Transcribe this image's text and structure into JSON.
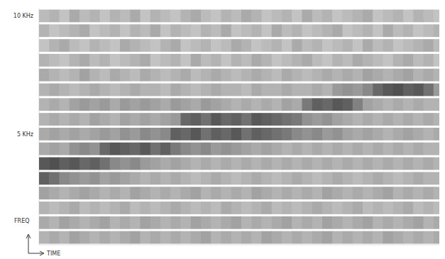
{
  "chart_data": {
    "type": "heatmap",
    "x_label": "TIME",
    "y_label": "FREQ",
    "tick_labels": "y",
    "x": [
      0,
      1,
      2,
      3,
      4,
      5,
      6,
      7,
      8,
      9,
      10,
      11,
      12,
      13,
      14,
      15,
      16,
      17,
      18,
      19,
      20,
      21,
      22,
      23,
      24,
      25,
      26,
      27,
      28,
      29,
      30,
      31,
      32,
      33,
      34,
      35,
      36,
      37,
      38,
      39
    ],
    "y": [
      10,
      9.375,
      8.75,
      8.125,
      7.5,
      6.875,
      6.25,
      5.625,
      5,
      4.375,
      3.75,
      3.125,
      2.5,
      1.875,
      1.25,
      0.625
    ],
    "xlim": [
      0,
      40
    ],
    "ylim": [
      0.3125,
      10.3125
    ],
    "yticks": [
      {
        "value": 10,
        "label": "10 KHz"
      },
      {
        "value": 5,
        "label": "5 KHz"
      }
    ],
    "cells": [
      [
        0.25,
        0.3,
        0.2,
        0.35,
        0.25,
        0.3,
        0.2,
        0.3,
        0.25,
        0.35,
        0.2,
        0.3,
        0.25,
        0.2,
        0.3,
        0.35,
        0.25,
        0.2,
        0.3,
        0.25,
        0.35,
        0.3,
        0.2,
        0.25,
        0.3,
        0.2,
        0.35,
        0.25,
        0.3,
        0.2,
        0.25,
        0.3,
        0.35,
        0.2,
        0.25,
        0.3,
        0.2,
        0.3,
        0.25,
        0.2
      ],
      [
        0.3,
        0.2,
        0.25,
        0.3,
        0.35,
        0.2,
        0.25,
        0.3,
        0.2,
        0.3,
        0.25,
        0.35,
        0.2,
        0.3,
        0.25,
        0.2,
        0.3,
        0.25,
        0.35,
        0.2,
        0.25,
        0.3,
        0.2,
        0.35,
        0.25,
        0.3,
        0.2,
        0.25,
        0.3,
        0.35,
        0.2,
        0.25,
        0.3,
        0.2,
        0.35,
        0.25,
        0.3,
        0.2,
        0.25,
        0.3
      ],
      [
        0.2,
        0.3,
        0.35,
        0.25,
        0.2,
        0.3,
        0.25,
        0.2,
        0.35,
        0.3,
        0.25,
        0.2,
        0.3,
        0.35,
        0.2,
        0.25,
        0.3,
        0.2,
        0.25,
        0.35,
        0.3,
        0.2,
        0.25,
        0.3,
        0.2,
        0.35,
        0.25,
        0.3,
        0.2,
        0.25,
        0.3,
        0.2,
        0.35,
        0.25,
        0.3,
        0.2,
        0.25,
        0.3,
        0.35,
        0.25
      ],
      [
        0.3,
        0.25,
        0.2,
        0.3,
        0.35,
        0.25,
        0.3,
        0.2,
        0.25,
        0.3,
        0.35,
        0.2,
        0.25,
        0.3,
        0.2,
        0.35,
        0.25,
        0.3,
        0.2,
        0.3,
        0.25,
        0.35,
        0.3,
        0.2,
        0.25,
        0.3,
        0.35,
        0.25,
        0.2,
        0.3,
        0.25,
        0.35,
        0.3,
        0.25,
        0.2,
        0.3,
        0.35,
        0.25,
        0.3,
        0.2
      ],
      [
        0.35,
        0.3,
        0.25,
        0.3,
        0.4,
        0.3,
        0.25,
        0.35,
        0.3,
        0.25,
        0.35,
        0.3,
        0.25,
        0.3,
        0.35,
        0.25,
        0.3,
        0.35,
        0.3,
        0.25,
        0.3,
        0.35,
        0.3,
        0.25,
        0.35,
        0.3,
        0.25,
        0.3,
        0.35,
        0.3,
        0.35,
        0.3,
        0.4,
        0.35,
        0.3,
        0.35,
        0.4,
        0.3,
        0.35,
        0.3
      ],
      [
        0.3,
        0.35,
        0.3,
        0.25,
        0.3,
        0.35,
        0.3,
        0.25,
        0.3,
        0.35,
        0.3,
        0.3,
        0.25,
        0.35,
        0.3,
        0.25,
        0.3,
        0.35,
        0.3,
        0.3,
        0.25,
        0.35,
        0.3,
        0.3,
        0.35,
        0.3,
        0.3,
        0.35,
        0.3,
        0.45,
        0.5,
        0.45,
        0.55,
        0.75,
        0.85,
        0.9,
        0.8,
        0.85,
        0.7,
        0.45
      ],
      [
        0.3,
        0.35,
        0.3,
        0.4,
        0.45,
        0.4,
        0.45,
        0.35,
        0.45,
        0.4,
        0.45,
        0.4,
        0.35,
        0.45,
        0.4,
        0.35,
        0.45,
        0.4,
        0.35,
        0.3,
        0.35,
        0.3,
        0.35,
        0.3,
        0.4,
        0.35,
        0.65,
        0.8,
        0.75,
        0.85,
        0.8,
        0.6,
        0.4,
        0.35,
        0.3,
        0.35,
        0.3,
        0.35,
        0.3,
        0.3
      ],
      [
        0.3,
        0.35,
        0.3,
        0.35,
        0.3,
        0.4,
        0.35,
        0.3,
        0.4,
        0.35,
        0.4,
        0.35,
        0.4,
        0.45,
        0.75,
        0.8,
        0.7,
        0.85,
        0.75,
        0.8,
        0.7,
        0.85,
        0.8,
        0.75,
        0.7,
        0.65,
        0.5,
        0.45,
        0.5,
        0.4,
        0.35,
        0.3,
        0.35,
        0.3,
        0.35,
        0.3,
        0.35,
        0.3,
        0.35,
        0.3
      ],
      [
        0.35,
        0.4,
        0.35,
        0.4,
        0.35,
        0.4,
        0.45,
        0.4,
        0.5,
        0.45,
        0.55,
        0.5,
        0.55,
        0.8,
        0.75,
        0.85,
        0.7,
        0.8,
        0.75,
        0.85,
        0.7,
        0.8,
        0.75,
        0.7,
        0.65,
        0.55,
        0.5,
        0.55,
        0.45,
        0.5,
        0.4,
        0.35,
        0.4,
        0.35,
        0.3,
        0.35,
        0.4,
        0.35,
        0.3,
        0.35
      ],
      [
        0.35,
        0.4,
        0.35,
        0.5,
        0.55,
        0.5,
        0.75,
        0.85,
        0.8,
        0.75,
        0.85,
        0.7,
        0.8,
        0.65,
        0.55,
        0.5,
        0.55,
        0.45,
        0.5,
        0.45,
        0.4,
        0.35,
        0.4,
        0.35,
        0.3,
        0.35,
        0.3,
        0.35,
        0.3,
        0.35,
        0.3,
        0.35,
        0.3,
        0.35,
        0.3,
        0.35,
        0.3,
        0.35,
        0.3,
        0.3
      ],
      [
        0.85,
        0.9,
        0.8,
        0.85,
        0.75,
        0.8,
        0.7,
        0.55,
        0.5,
        0.55,
        0.45,
        0.4,
        0.35,
        0.4,
        0.35,
        0.3,
        0.35,
        0.3,
        0.35,
        0.3,
        0.35,
        0.3,
        0.35,
        0.3,
        0.35,
        0.3,
        0.35,
        0.3,
        0.35,
        0.3,
        0.35,
        0.3,
        0.35,
        0.3,
        0.35,
        0.3,
        0.35,
        0.3,
        0.35,
        0.3
      ],
      [
        0.8,
        0.7,
        0.55,
        0.5,
        0.45,
        0.5,
        0.4,
        0.45,
        0.4,
        0.35,
        0.3,
        0.35,
        0.3,
        0.35,
        0.3,
        0.25,
        0.3,
        0.35,
        0.3,
        0.25,
        0.3,
        0.35,
        0.3,
        0.25,
        0.3,
        0.35,
        0.3,
        0.25,
        0.3,
        0.35,
        0.3,
        0.25,
        0.3,
        0.35,
        0.3,
        0.25,
        0.3,
        0.35,
        0.3,
        0.3
      ],
      [
        0.4,
        0.35,
        0.3,
        0.35,
        0.4,
        0.35,
        0.3,
        0.35,
        0.3,
        0.4,
        0.35,
        0.3,
        0.35,
        0.3,
        0.35,
        0.4,
        0.3,
        0.35,
        0.3,
        0.35,
        0.3,
        0.4,
        0.35,
        0.3,
        0.35,
        0.3,
        0.35,
        0.3,
        0.4,
        0.35,
        0.3,
        0.35,
        0.3,
        0.35,
        0.4,
        0.3,
        0.35,
        0.3,
        0.35,
        0.3
      ],
      [
        0.3,
        0.25,
        0.3,
        0.35,
        0.25,
        0.3,
        0.25,
        0.3,
        0.35,
        0.25,
        0.3,
        0.25,
        0.3,
        0.35,
        0.3,
        0.25,
        0.3,
        0.25,
        0.35,
        0.3,
        0.25,
        0.3,
        0.35,
        0.25,
        0.3,
        0.25,
        0.3,
        0.35,
        0.3,
        0.25,
        0.3,
        0.35,
        0.25,
        0.3,
        0.25,
        0.3,
        0.35,
        0.25,
        0.3,
        0.25
      ],
      [
        0.35,
        0.3,
        0.4,
        0.35,
        0.3,
        0.35,
        0.4,
        0.3,
        0.35,
        0.3,
        0.4,
        0.35,
        0.3,
        0.35,
        0.3,
        0.4,
        0.35,
        0.3,
        0.35,
        0.4,
        0.3,
        0.35,
        0.3,
        0.35,
        0.4,
        0.3,
        0.35,
        0.3,
        0.4,
        0.35,
        0.3,
        0.35,
        0.4,
        0.3,
        0.35,
        0.3,
        0.35,
        0.4,
        0.3,
        0.35
      ],
      [
        0.3,
        0.35,
        0.3,
        0.4,
        0.35,
        0.3,
        0.35,
        0.3,
        0.35,
        0.4,
        0.3,
        0.35,
        0.3,
        0.35,
        0.3,
        0.35,
        0.4,
        0.3,
        0.35,
        0.3,
        0.35,
        0.3,
        0.4,
        0.35,
        0.3,
        0.35,
        0.3,
        0.35,
        0.4,
        0.3,
        0.35,
        0.3,
        0.35,
        0.3,
        0.4,
        0.35,
        0.3,
        0.35,
        0.3,
        0.35
      ]
    ]
  }
}
